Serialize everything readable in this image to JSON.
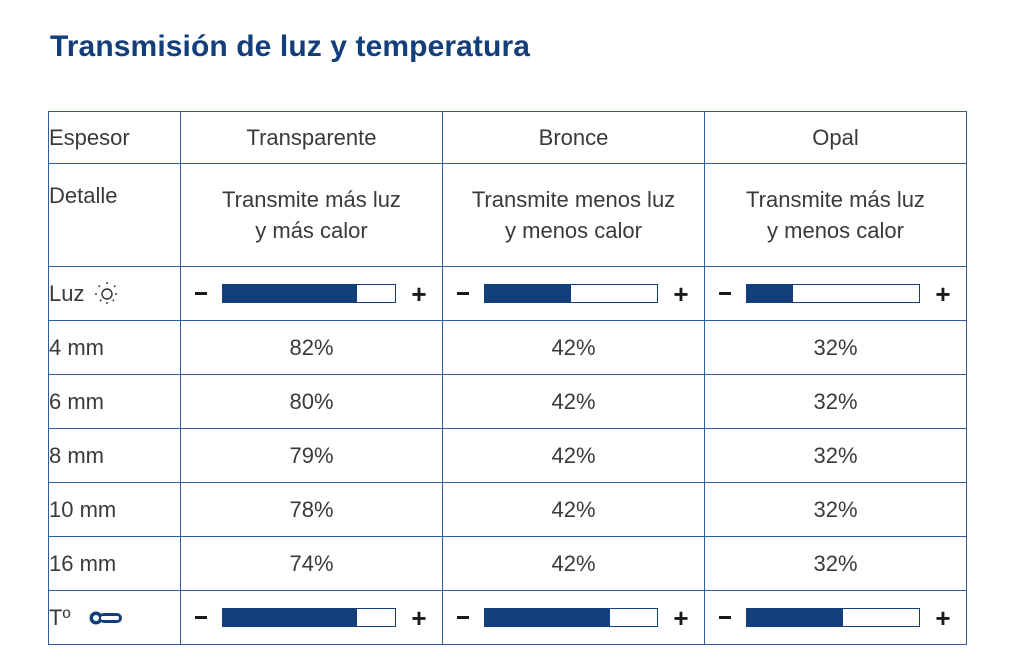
{
  "title": "Transmisión de luz y temperatura",
  "columns": [
    "Transparente",
    "Bronce",
    "Opal"
  ],
  "row_labels": {
    "espesor": "Espesor",
    "detalle": "Detalle",
    "luz": "Luz",
    "temp": "Tº"
  },
  "details": [
    [
      "Transmite más luz",
      "y más calor"
    ],
    [
      "Transmite menos luz",
      "y menos calor"
    ],
    [
      "Transmite más luz",
      "y menos calor"
    ]
  ],
  "scale": {
    "minus": "−",
    "plus": "+"
  },
  "luz_levels": [
    0.78,
    0.5,
    0.27
  ],
  "temp_levels": [
    0.78,
    0.73,
    0.56
  ],
  "rows": [
    {
      "thickness": "4 mm",
      "values": [
        "82%",
        "42%",
        "32%"
      ]
    },
    {
      "thickness": "6 mm",
      "values": [
        "80%",
        "42%",
        "32%"
      ]
    },
    {
      "thickness": "8 mm",
      "values": [
        "79%",
        "42%",
        "32%"
      ]
    },
    {
      "thickness": "10 mm",
      "values": [
        "78%",
        "42%",
        "32%"
      ]
    },
    {
      "thickness": "16 mm",
      "values": [
        "74%",
        "42%",
        "32%"
      ]
    }
  ],
  "icons": {
    "luz": "sun-icon",
    "temp": "thermometer-icon"
  },
  "colors": {
    "accent": "#123e7a",
    "border": "#2f5d9a"
  }
}
